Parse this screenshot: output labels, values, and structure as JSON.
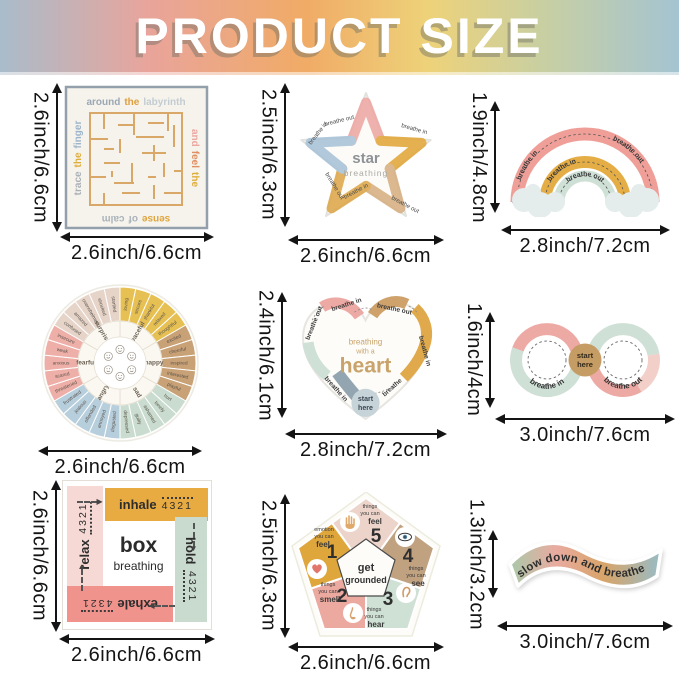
{
  "header": {
    "title": "PRODUCT SIZE"
  },
  "palette": {
    "pink": "#eda9a4",
    "mustard": "#e2a83e",
    "tan": "#c9a176",
    "mint": "#cfe0d6",
    "blue": "#a9c4d8",
    "blush": "#ecd4ca",
    "salmon": "#ef938c",
    "gray_blue": "#93a5b1"
  },
  "icons": [
    "hand-icon",
    "eye-icon",
    "ear-icon",
    "nose-icon",
    "heart-icon",
    "cloud-icon",
    "face-icon",
    "dimension-arrow"
  ],
  "items": {
    "maze": {
      "v": "2.6inch/6.6cm",
      "h": "2.6inch/6.6cm",
      "top": [
        "around",
        "the",
        "labyrinth"
      ],
      "left": [
        "trace",
        "the",
        "finger"
      ],
      "right": [
        "and",
        "feel",
        "the"
      ],
      "bottom": [
        "sense",
        "of",
        "calm"
      ]
    },
    "star": {
      "v": "2.5inch/6.3cm",
      "h": "2.6inch/6.6cm",
      "title": "star",
      "subtitle": "breathing",
      "labels": [
        "breathe out",
        "breathe in",
        "breathe out",
        "breathe in",
        "breathe in",
        "breathe out"
      ]
    },
    "rainbow": {
      "v": "1.9inch/4.8cm",
      "h": "2.8inch/7.2cm",
      "outer_in": "breathe in",
      "outer_out": "breathe out",
      "mid_in": "breathe in",
      "inner_out": "breathe out"
    },
    "wheel": {
      "h": "2.6inch/6.6cm",
      "core": [
        "peaceful",
        "happy",
        "sad",
        "angry",
        "fearful",
        "surprised"
      ],
      "group_colors": [
        "#e7c054",
        "#c9a176",
        "#c9dccf",
        "#b7cedd",
        "#eeafa8",
        "#e6d4c9"
      ],
      "words": [
        "loving",
        "secure",
        "thankful",
        "relaxed",
        "thoughtful",
        "excited",
        "cheerful",
        "inspired",
        "interested",
        "playful",
        "hurt",
        "lonely",
        "ashamed",
        "guilty",
        "depressed",
        "disgusted",
        "annoyed",
        "offended",
        "jealous",
        "frustrated",
        "threatened",
        "scared",
        "anxious",
        "weak",
        "insecure",
        "confused",
        "amazed",
        "overwhelmed",
        "shocked",
        "startled"
      ]
    },
    "heart": {
      "v": "2.4inch/6.1cm",
      "h": "2.8inch/7.2cm",
      "line1": "breathing",
      "line2": "with a",
      "line3": "heart",
      "start1": "start",
      "start2": "here",
      "labels": [
        "breathe in",
        "breathe out",
        "breathe in",
        "breathe out",
        "breathe in",
        "breathe"
      ]
    },
    "infinity": {
      "v": "1.6inch/4cm",
      "h": "3.0inch/7.6cm",
      "left_label": "breathe in",
      "right_label": "breathe out",
      "start1": "start",
      "start2": "here"
    },
    "box": {
      "v": "2.6inch/6.6cm",
      "h": "2.6inch/6.6cm",
      "title": "box",
      "subtitle": "breathing",
      "bars": [
        {
          "word": "inhale",
          "count": "4321"
        },
        {
          "word": "hold",
          "count": "4321"
        },
        {
          "word": "exhale",
          "count": "4321"
        },
        {
          "word": "relax",
          "count": "4321"
        }
      ]
    },
    "pentagon": {
      "v": "2.5inch/6.3cm",
      "h": "2.6inch/6.6cm",
      "center1": "get",
      "center2": "grounded",
      "sections": [
        {
          "n": "5",
          "l1": "things",
          "l2": "you can",
          "l3": "feel"
        },
        {
          "n": "4",
          "l1": "things",
          "l2": "you can",
          "l3": "see"
        },
        {
          "n": "3",
          "l1": "things",
          "l2": "you can",
          "l3": "hear"
        },
        {
          "n": "2",
          "l1": "things",
          "l2": "you can",
          "l3": "smell"
        },
        {
          "n": "1",
          "l1": "emotion",
          "l2": "you can",
          "l3": "feel"
        }
      ]
    },
    "wave": {
      "v": "1.3inch/3.2cm",
      "h": "3.0inch/7.6cm",
      "text": "slow down and breathe"
    }
  }
}
